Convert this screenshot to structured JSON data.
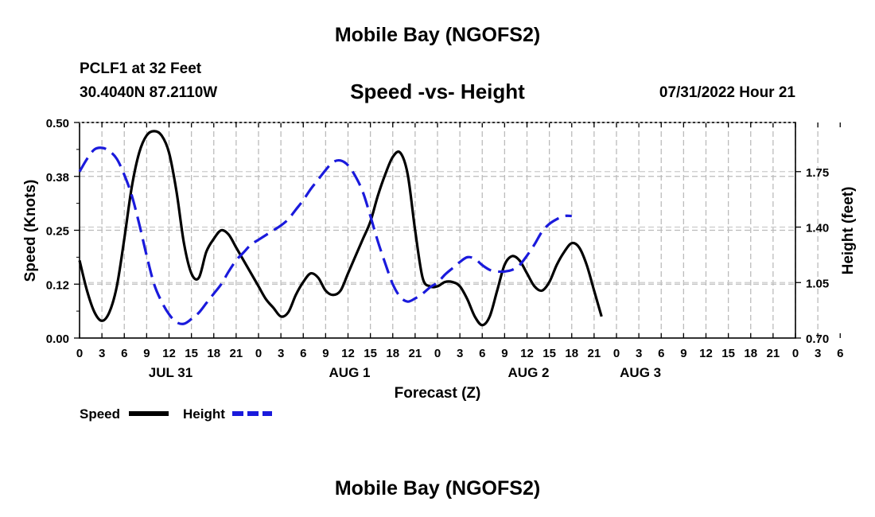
{
  "header": {
    "title": "Mobile Bay (NGOFS2)",
    "station": "PCLF1 at 32 Feet",
    "coordinates": "30.4040N  87.2110W",
    "timestamp": "07/31/2022 Hour 21"
  },
  "footer": {
    "title": "Mobile Bay (NGOFS2)"
  },
  "chart_data": {
    "type": "line",
    "title": "Speed -vs- Height",
    "xlabel": "Forecast (Z)",
    "ylabel": "Speed (Knots)",
    "y2label": "Height (feet)",
    "x_hours": [
      0,
      96
    ],
    "x_ticks": [
      "0",
      "3",
      "6",
      "9",
      "12",
      "15",
      "18",
      "21",
      "0",
      "3",
      "6",
      "9",
      "12",
      "15",
      "18",
      "21",
      "0",
      "3",
      "6",
      "9",
      "12",
      "15",
      "18",
      "21",
      "0",
      "3",
      "6",
      "9",
      "12",
      "15",
      "18",
      "21",
      "0",
      "3",
      "6"
    ],
    "day_labels": [
      {
        "label": "JUL 31",
        "hour": 12
      },
      {
        "label": "AUG 1",
        "hour": 36
      },
      {
        "label": "AUG 2",
        "hour": 60
      },
      {
        "label": "AUG 3",
        "hour": 75
      }
    ],
    "ylim": [
      0,
      0.5
    ],
    "y_ticks": [
      "0.00",
      "0.12",
      "0.25",
      "0.38",
      "0.50"
    ],
    "y_tick_values": [
      0,
      0.125,
      0.25,
      0.375,
      0.5
    ],
    "y2lim": [
      0.7,
      2.06
    ],
    "y2_ticks": [
      "0.70",
      "1.05",
      "1.40",
      "1.75"
    ],
    "y2_tick_values": [
      0.7,
      1.05,
      1.4,
      1.75
    ],
    "legend_position": "bottom-left",
    "series": [
      {
        "name": "Speed",
        "color": "#000000",
        "dashed": false,
        "axis": "left",
        "points": [
          [
            0,
            0.18
          ],
          [
            1,
            0.11
          ],
          [
            2,
            0.06
          ],
          [
            3,
            0.04
          ],
          [
            4,
            0.06
          ],
          [
            5,
            0.12
          ],
          [
            6,
            0.23
          ],
          [
            7,
            0.35
          ],
          [
            8,
            0.43
          ],
          [
            9,
            0.47
          ],
          [
            10,
            0.48
          ],
          [
            11,
            0.47
          ],
          [
            12,
            0.43
          ],
          [
            13,
            0.34
          ],
          [
            14,
            0.22
          ],
          [
            15,
            0.15
          ],
          [
            16,
            0.14
          ],
          [
            17,
            0.2
          ],
          [
            18,
            0.23
          ],
          [
            19,
            0.25
          ],
          [
            20,
            0.24
          ],
          [
            21,
            0.21
          ],
          [
            22,
            0.18
          ],
          [
            23,
            0.15
          ],
          [
            24,
            0.12
          ],
          [
            25,
            0.09
          ],
          [
            26,
            0.07
          ],
          [
            27,
            0.05
          ],
          [
            28,
            0.06
          ],
          [
            29,
            0.1
          ],
          [
            30,
            0.13
          ],
          [
            31,
            0.15
          ],
          [
            32,
            0.14
          ],
          [
            33,
            0.11
          ],
          [
            34,
            0.1
          ],
          [
            35,
            0.11
          ],
          [
            36,
            0.15
          ],
          [
            37,
            0.19
          ],
          [
            38,
            0.23
          ],
          [
            39,
            0.27
          ],
          [
            40,
            0.33
          ],
          [
            41,
            0.38
          ],
          [
            42,
            0.42
          ],
          [
            43,
            0.43
          ],
          [
            44,
            0.38
          ],
          [
            45,
            0.25
          ],
          [
            46,
            0.14
          ],
          [
            47,
            0.12
          ],
          [
            48,
            0.12
          ],
          [
            49,
            0.13
          ],
          [
            50,
            0.13
          ],
          [
            51,
            0.12
          ],
          [
            52,
            0.09
          ],
          [
            53,
            0.05
          ],
          [
            54,
            0.03
          ],
          [
            55,
            0.05
          ],
          [
            56,
            0.11
          ],
          [
            57,
            0.17
          ],
          [
            58,
            0.19
          ],
          [
            59,
            0.18
          ],
          [
            60,
            0.15
          ],
          [
            61,
            0.12
          ],
          [
            62,
            0.11
          ],
          [
            63,
            0.13
          ],
          [
            64,
            0.17
          ],
          [
            65,
            0.2
          ],
          [
            66,
            0.22
          ],
          [
            67,
            0.21
          ],
          [
            68,
            0.17
          ],
          [
            69,
            0.11
          ],
          [
            70,
            0.05
          ]
        ]
      },
      {
        "name": "Height",
        "color": "#1a1adc",
        "dashed": true,
        "axis": "right",
        "points": [
          [
            0,
            1.75
          ],
          [
            1,
            1.83
          ],
          [
            2,
            1.89
          ],
          [
            3,
            1.9
          ],
          [
            4,
            1.88
          ],
          [
            5,
            1.83
          ],
          [
            6,
            1.73
          ],
          [
            7,
            1.6
          ],
          [
            8,
            1.42
          ],
          [
            9,
            1.22
          ],
          [
            10,
            1.04
          ],
          [
            11,
            0.93
          ],
          [
            12,
            0.85
          ],
          [
            13,
            0.8
          ],
          [
            14,
            0.79
          ],
          [
            15,
            0.82
          ],
          [
            16,
            0.86
          ],
          [
            17,
            0.92
          ],
          [
            18,
            0.98
          ],
          [
            19,
            1.04
          ],
          [
            20,
            1.12
          ],
          [
            21,
            1.19
          ],
          [
            22,
            1.24
          ],
          [
            23,
            1.29
          ],
          [
            24,
            1.32
          ],
          [
            25,
            1.35
          ],
          [
            26,
            1.38
          ],
          [
            27,
            1.41
          ],
          [
            28,
            1.45
          ],
          [
            29,
            1.51
          ],
          [
            30,
            1.57
          ],
          [
            31,
            1.64
          ],
          [
            32,
            1.7
          ],
          [
            33,
            1.76
          ],
          [
            34,
            1.81
          ],
          [
            35,
            1.82
          ],
          [
            36,
            1.79
          ],
          [
            37,
            1.72
          ],
          [
            38,
            1.62
          ],
          [
            39,
            1.47
          ],
          [
            40,
            1.31
          ],
          [
            41,
            1.17
          ],
          [
            42,
            1.04
          ],
          [
            43,
            0.96
          ],
          [
            44,
            0.93
          ],
          [
            45,
            0.95
          ],
          [
            46,
            0.98
          ],
          [
            47,
            1.02
          ],
          [
            48,
            1.05
          ],
          [
            49,
            1.1
          ],
          [
            50,
            1.14
          ],
          [
            51,
            1.18
          ],
          [
            52,
            1.21
          ],
          [
            53,
            1.2
          ],
          [
            54,
            1.16
          ],
          [
            55,
            1.13
          ],
          [
            56,
            1.12
          ],
          [
            57,
            1.12
          ],
          [
            58,
            1.13
          ],
          [
            59,
            1.16
          ],
          [
            60,
            1.22
          ],
          [
            61,
            1.29
          ],
          [
            62,
            1.37
          ],
          [
            63,
            1.42
          ],
          [
            64,
            1.45
          ],
          [
            65,
            1.47
          ],
          [
            66,
            1.47
          ]
        ]
      }
    ]
  }
}
